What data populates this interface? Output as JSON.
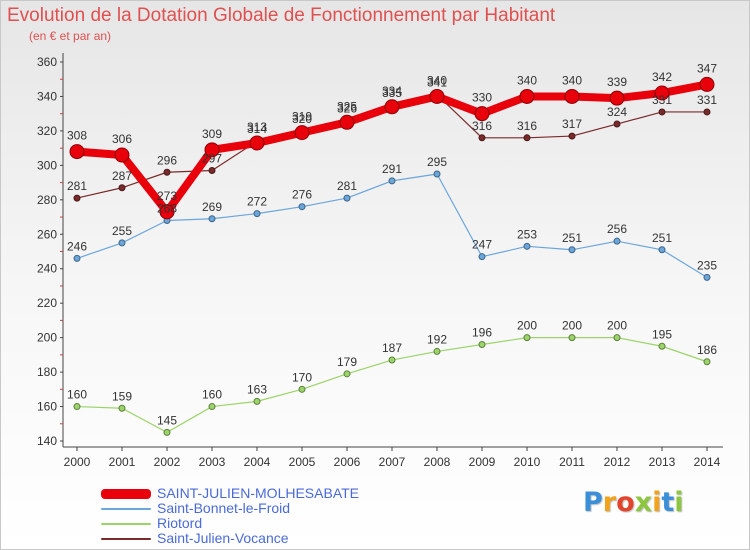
{
  "header": {
    "title": "Evolution de la Dotation Globale de Fonctionnement par Habitant",
    "subtitle": "(en € et par an)"
  },
  "logo": {
    "text": "Proxiti",
    "letters": [
      "P",
      "r",
      "o",
      "x",
      "i",
      "t",
      "i"
    ],
    "letter_colors": [
      "#3b8fd8",
      "#f2a21b",
      "#e2452b",
      "#8cc63f",
      "#f2a21b",
      "#3b8fd8",
      "#8cc63f"
    ]
  },
  "chart_data": {
    "type": "line",
    "x": [
      2000,
      2001,
      2002,
      2003,
      2004,
      2005,
      2006,
      2007,
      2008,
      2009,
      2010,
      2011,
      2012,
      2013,
      2014
    ],
    "ylim": [
      140,
      360
    ],
    "yticks": [
      140,
      160,
      180,
      200,
      220,
      240,
      260,
      280,
      300,
      320,
      340,
      360
    ],
    "grid": false,
    "legend_position": "bottom-left",
    "series": [
      {
        "name": "SAINT-JULIEN-MOLHESABATE",
        "color": "#e8000b",
        "values": [
          308,
          306,
          273,
          309,
          313,
          319,
          325,
          334,
          340,
          330,
          340,
          340,
          339,
          342,
          347
        ],
        "labels": [
          "308",
          "306",
          "273",
          "309",
          "313",
          "319",
          "325",
          "334",
          "340",
          "330",
          "340",
          "340",
          "339",
          "342",
          "347"
        ]
      },
      {
        "name": "Saint-Bonnet-le-Froid",
        "color": "#6aa6dc",
        "values": [
          246,
          255,
          268,
          269,
          272,
          276,
          281,
          291,
          295,
          247,
          253,
          251,
          256,
          251,
          235
        ],
        "labels": [
          "246",
          "255",
          "268",
          "269",
          "272",
          "276",
          "281",
          "291",
          "295",
          "247",
          "253",
          "251",
          "256",
          "251",
          "235"
        ]
      },
      {
        "name": "Riotord",
        "color": "#9bd468",
        "values": [
          160,
          159,
          145,
          160,
          163,
          170,
          179,
          187,
          192,
          196,
          200,
          200,
          200,
          195,
          186
        ],
        "labels": [
          "160",
          "159",
          "145",
          "160",
          "163",
          "170",
          "179",
          "187",
          "192",
          "196",
          "200",
          "200",
          "200",
          "195",
          "186"
        ]
      },
      {
        "name": "Saint-Julien-Vocance",
        "color": "#7a2a2a",
        "values": [
          281,
          287,
          296,
          297,
          314,
          320,
          326,
          335,
          341,
          316,
          316,
          317,
          324,
          331,
          331
        ],
        "labels": [
          "281",
          "287",
          "296",
          "297",
          "314",
          "320",
          "326",
          "335",
          "341",
          "316",
          "316",
          "317",
          "324",
          "331",
          "331"
        ]
      }
    ]
  }
}
